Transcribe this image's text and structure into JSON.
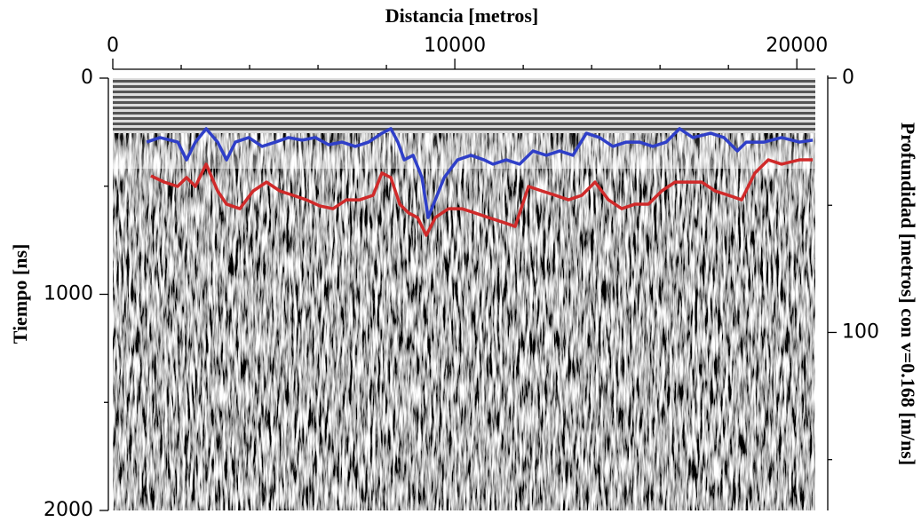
{
  "chart_data": {
    "type": "line",
    "title": "Distancia [metros]",
    "ylabel": "Tiempo [ns]",
    "y2label": "Profundidad [metros] con v=0.168 [m/ns]",
    "xlim": [
      0,
      20540
    ],
    "xticks": [
      0,
      10000,
      20000
    ],
    "xminorticks": [
      2000,
      4000,
      6000,
      8000,
      12000,
      14000,
      16000,
      18000
    ],
    "ylim": [
      0,
      2000
    ],
    "yticks": [
      0,
      1000,
      2000
    ],
    "yminorticks": [
      500,
      1500
    ],
    "y_inverted": true,
    "y2lim": [
      0,
      170
    ],
    "y2ticks": [
      0,
      100
    ],
    "y2minorticks": [
      50,
      150
    ],
    "series": [
      {
        "color": "#2f3fc8",
        "x": [
          990,
          1380,
          1900,
          2155,
          2415,
          2730,
          3065,
          3325,
          3585,
          3975,
          4365,
          4755,
          5140,
          5530,
          5920,
          6310,
          6700,
          7090,
          7480,
          7870,
          8130,
          8335,
          8520,
          8780,
          9040,
          9220,
          9430,
          9690,
          10080,
          10470,
          10855,
          11115,
          11505,
          11895,
          12285,
          12675,
          13065,
          13455,
          13845,
          14235,
          14620,
          15010,
          15400,
          15790,
          16180,
          16570,
          16960,
          17480,
          17870,
          18260,
          18520,
          19040,
          19555,
          20075,
          20465
        ],
        "values": [
          296,
          275,
          296,
          378,
          296,
          234,
          296,
          378,
          296,
          275,
          316,
          296,
          275,
          287,
          275,
          308,
          296,
          316,
          296,
          255,
          234,
          296,
          378,
          357,
          460,
          645,
          563,
          460,
          378,
          357,
          378,
          398,
          378,
          398,
          337,
          357,
          337,
          357,
          255,
          275,
          316,
          296,
          296,
          316,
          296,
          234,
          275,
          255,
          275,
          337,
          296,
          296,
          275,
          296,
          287
        ]
      },
      {
        "color": "#d02a2a",
        "x": [
          1115,
          1505,
          1895,
          2155,
          2415,
          2730,
          3065,
          3325,
          3715,
          4105,
          4495,
          4885,
          5270,
          5660,
          6050,
          6440,
          6830,
          7220,
          7610,
          7870,
          8130,
          8390,
          8650,
          8910,
          9165,
          9430,
          9815,
          10205,
          10595,
          10985,
          11375,
          11765,
          12155,
          12545,
          12935,
          13325,
          13715,
          14100,
          14490,
          14880,
          15270,
          15660,
          16050,
          16440,
          16830,
          17220,
          17610,
          18000,
          18385,
          18775,
          19165,
          19555,
          20075,
          20465
        ],
        "values": [
          452,
          481,
          501,
          460,
          501,
          398,
          522,
          583,
          604,
          522,
          481,
          522,
          542,
          563,
          591,
          604,
          563,
          563,
          542,
          439,
          460,
          583,
          624,
          645,
          727,
          645,
          604,
          604,
          624,
          645,
          665,
          686,
          501,
          522,
          542,
          563,
          542,
          481,
          563,
          604,
          583,
          583,
          522,
          481,
          481,
          481,
          522,
          542,
          563,
          439,
          378,
          398,
          378,
          378
        ]
      }
    ]
  }
}
